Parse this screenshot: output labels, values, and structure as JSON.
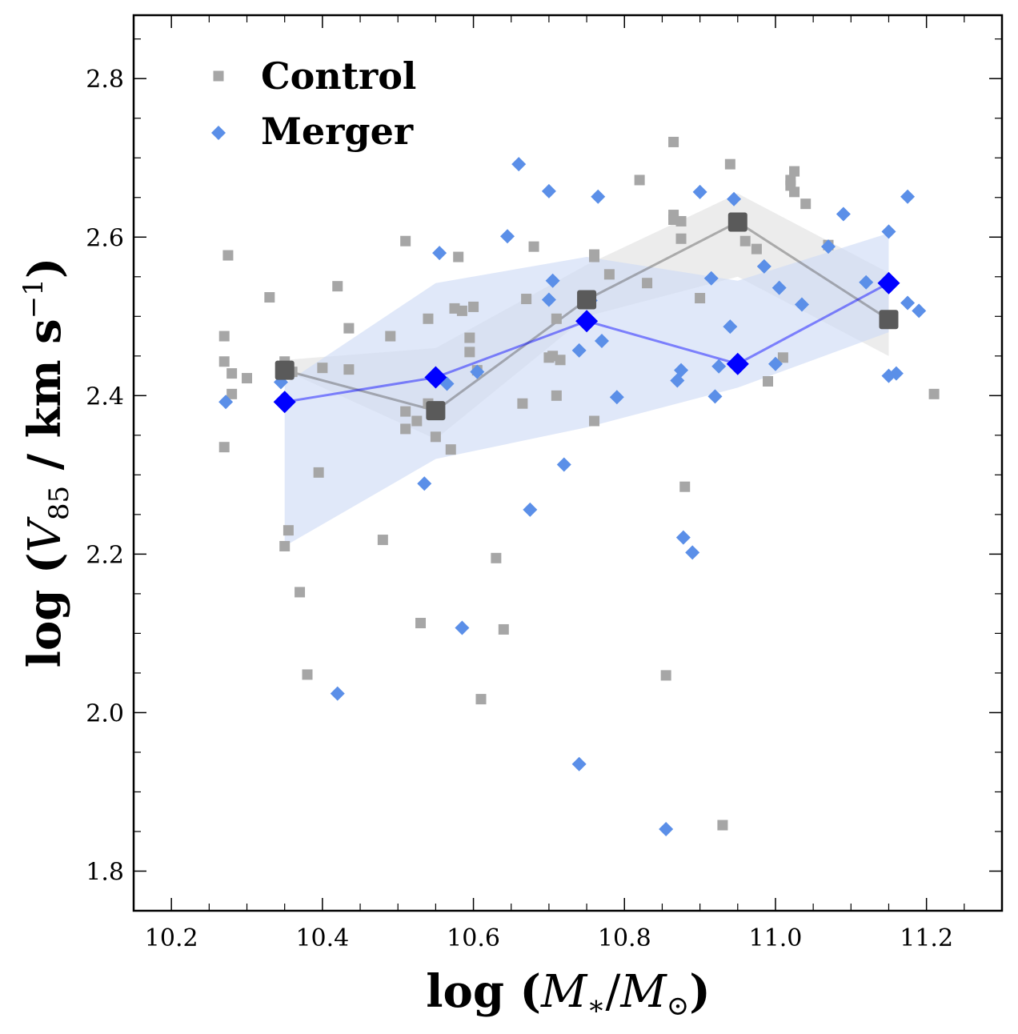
{
  "chart_data": {
    "type": "scatter",
    "xlabel": "log (M*/M⊙)",
    "ylabel": "log (V85 / km s−1)",
    "xlabel_parts": {
      "prefix": "log (",
      "m1": "M",
      "sub1": "∗",
      "slash": "/",
      "m2": "M",
      "sub2": "⊙",
      "suffix": ")"
    },
    "ylabel_parts": {
      "prefix": "log (",
      "v": "V",
      "sub": "85",
      "mid": " / km s",
      "sup": "−1",
      "suffix": ")"
    },
    "xlim": [
      10.15,
      11.3
    ],
    "ylim": [
      1.75,
      2.88
    ],
    "xticks": [
      10.2,
      10.4,
      10.6,
      10.8,
      11.0,
      11.2
    ],
    "xtick_labels": [
      "10.2",
      "10.4",
      "10.6",
      "10.8",
      "11.0",
      "11.2"
    ],
    "yticks": [
      1.8,
      2.0,
      2.2,
      2.4,
      2.6,
      2.8
    ],
    "ytick_labels": [
      "1.8",
      "2.0",
      "2.2",
      "2.4",
      "2.6",
      "2.8"
    ],
    "legend": {
      "position": "top-left",
      "entries": [
        "Control",
        "Merger"
      ]
    },
    "colors": {
      "control": "#a6a6a6",
      "control_median": "#5a5a5a",
      "merger": "#5b8fe8",
      "merger_median": "#0000ff",
      "control_band": "#e6e6e6",
      "merger_band": "#cfdcf6"
    },
    "series": [
      {
        "name": "Control",
        "marker": "square",
        "points": [
          [
            10.27,
            2.475
          ],
          [
            10.27,
            2.443
          ],
          [
            10.275,
            2.577
          ],
          [
            10.28,
            2.428
          ],
          [
            10.28,
            2.402
          ],
          [
            10.27,
            2.335
          ],
          [
            10.3,
            2.422
          ],
          [
            10.33,
            2.524
          ],
          [
            10.35,
            2.443
          ],
          [
            10.36,
            2.43
          ],
          [
            10.35,
            2.21
          ],
          [
            10.355,
            2.23
          ],
          [
            10.37,
            2.152
          ],
          [
            10.38,
            2.048
          ],
          [
            10.395,
            2.303
          ],
          [
            10.4,
            2.435
          ],
          [
            10.42,
            2.538
          ],
          [
            10.435,
            2.485
          ],
          [
            10.435,
            2.433
          ],
          [
            10.48,
            2.218
          ],
          [
            10.49,
            2.475
          ],
          [
            10.51,
            2.595
          ],
          [
            10.51,
            2.38
          ],
          [
            10.51,
            2.358
          ],
          [
            10.53,
            2.113
          ],
          [
            10.525,
            2.368
          ],
          [
            10.54,
            2.497
          ],
          [
            10.54,
            2.39
          ],
          [
            10.55,
            2.348
          ],
          [
            10.57,
            2.332
          ],
          [
            10.575,
            2.51
          ],
          [
            10.58,
            2.575
          ],
          [
            10.585,
            2.507
          ],
          [
            10.595,
            2.455
          ],
          [
            10.595,
            2.473
          ],
          [
            10.6,
            2.512
          ],
          [
            10.605,
            2.432
          ],
          [
            10.61,
            2.017
          ],
          [
            10.63,
            2.195
          ],
          [
            10.64,
            2.105
          ],
          [
            10.665,
            2.39
          ],
          [
            10.67,
            2.522
          ],
          [
            10.68,
            2.588
          ],
          [
            10.7,
            2.448
          ],
          [
            10.705,
            2.45
          ],
          [
            10.71,
            2.497
          ],
          [
            10.71,
            2.4
          ],
          [
            10.715,
            2.445
          ],
          [
            10.76,
            2.578
          ],
          [
            10.76,
            2.575
          ],
          [
            10.76,
            2.368
          ],
          [
            10.78,
            2.553
          ],
          [
            10.82,
            2.672
          ],
          [
            10.83,
            2.542
          ],
          [
            10.855,
            2.047
          ],
          [
            10.865,
            2.628
          ],
          [
            10.865,
            2.622
          ],
          [
            10.865,
            2.72
          ],
          [
            10.875,
            2.62
          ],
          [
            10.875,
            2.598
          ],
          [
            10.88,
            2.285
          ],
          [
            10.9,
            2.523
          ],
          [
            10.93,
            1.858
          ],
          [
            10.94,
            2.692
          ],
          [
            10.96,
            2.595
          ],
          [
            10.975,
            2.585
          ],
          [
            10.99,
            2.418
          ],
          [
            11.01,
            2.448
          ],
          [
            11.02,
            2.672
          ],
          [
            11.02,
            2.665
          ],
          [
            11.025,
            2.683
          ],
          [
            11.025,
            2.657
          ],
          [
            11.04,
            2.642
          ],
          [
            11.07,
            2.59
          ],
          [
            11.21,
            2.402
          ]
        ],
        "median": [
          [
            10.35,
            2.432
          ],
          [
            10.55,
            2.381
          ],
          [
            10.75,
            2.521
          ],
          [
            10.95,
            2.619
          ],
          [
            11.15,
            2.496
          ]
        ],
        "band_lower": [
          2.432,
          2.345,
          2.5,
          2.55,
          2.45
        ],
        "band_upper": [
          2.445,
          2.46,
          2.565,
          2.655,
          2.555
        ]
      },
      {
        "name": "Merger",
        "marker": "diamond",
        "points": [
          [
            10.272,
            2.392
          ],
          [
            10.345,
            2.417
          ],
          [
            10.42,
            2.024
          ],
          [
            10.535,
            2.289
          ],
          [
            10.555,
            2.58
          ],
          [
            10.565,
            2.415
          ],
          [
            10.585,
            2.107
          ],
          [
            10.605,
            2.43
          ],
          [
            10.645,
            2.601
          ],
          [
            10.66,
            2.692
          ],
          [
            10.675,
            2.256
          ],
          [
            10.7,
            2.658
          ],
          [
            10.7,
            2.521
          ],
          [
            10.705,
            2.545
          ],
          [
            10.72,
            2.313
          ],
          [
            10.74,
            1.935
          ],
          [
            10.74,
            2.457
          ],
          [
            10.755,
            2.52
          ],
          [
            10.765,
            2.651
          ],
          [
            10.77,
            2.469
          ],
          [
            10.79,
            2.398
          ],
          [
            10.855,
            1.853
          ],
          [
            10.87,
            2.419
          ],
          [
            10.875,
            2.432
          ],
          [
            10.878,
            2.221
          ],
          [
            10.89,
            2.202
          ],
          [
            10.9,
            2.657
          ],
          [
            10.915,
            2.548
          ],
          [
            10.92,
            2.399
          ],
          [
            10.925,
            2.437
          ],
          [
            10.94,
            2.487
          ],
          [
            10.945,
            2.648
          ],
          [
            10.985,
            2.563
          ],
          [
            11.0,
            2.44
          ],
          [
            11.005,
            2.536
          ],
          [
            11.035,
            2.515
          ],
          [
            11.07,
            2.588
          ],
          [
            11.09,
            2.629
          ],
          [
            11.12,
            2.543
          ],
          [
            11.15,
            2.607
          ],
          [
            11.15,
            2.425
          ],
          [
            11.16,
            2.428
          ],
          [
            11.175,
            2.651
          ],
          [
            11.175,
            2.517
          ],
          [
            11.19,
            2.507
          ]
        ],
        "median": [
          [
            10.35,
            2.392
          ],
          [
            10.55,
            2.423
          ],
          [
            10.75,
            2.494
          ],
          [
            10.95,
            2.44
          ],
          [
            11.15,
            2.542
          ]
        ],
        "band_lower": [
          2.21,
          2.32,
          2.36,
          2.41,
          2.48
        ],
        "band_upper": [
          2.415,
          2.542,
          2.575,
          2.545,
          2.605
        ]
      }
    ]
  }
}
